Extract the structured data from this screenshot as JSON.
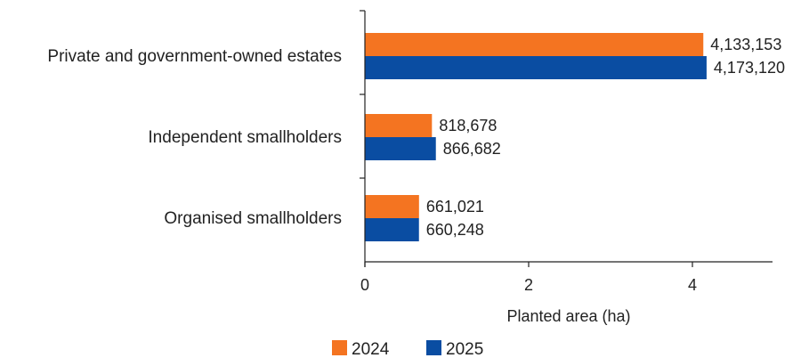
{
  "chart_data": {
    "type": "bar",
    "orientation": "horizontal",
    "categories": [
      "Private and government-owned estates",
      "Independent smallholders",
      "Organised smallholders"
    ],
    "series": [
      {
        "name": "2024",
        "color": "#F47421",
        "values": [
          4133153,
          818678,
          661021
        ],
        "labels": [
          "4,133,153",
          "818,678",
          "661,021"
        ]
      },
      {
        "name": "2025",
        "color": "#0A4DA2",
        "values": [
          4173120,
          866682,
          660248
        ],
        "labels": [
          "4,173,120",
          "866,682",
          "660,248"
        ]
      }
    ],
    "x_ticks": [
      0,
      2,
      4
    ],
    "x_tick_labels": [
      "0",
      "2",
      "4"
    ],
    "x_tick_unit": 1000000,
    "xlim": [
      0,
      5000000
    ],
    "xlabel": "Planted area (ha)",
    "grid": false,
    "legend_position": "bottom"
  }
}
